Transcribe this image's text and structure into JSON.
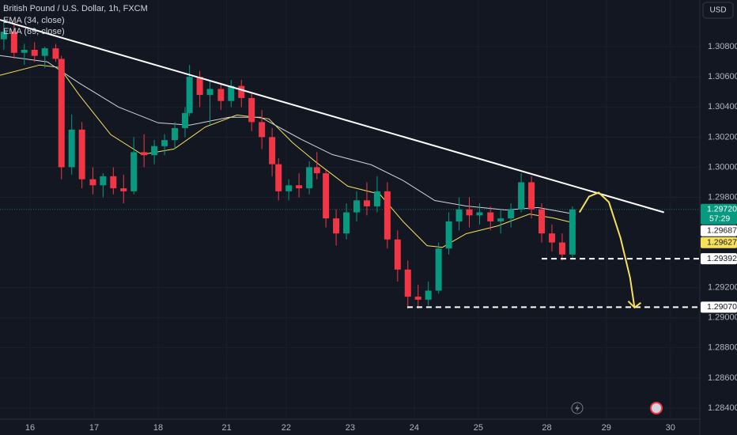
{
  "chart_data": {
    "type": "candlestick",
    "title": "British Pound / U.S. Dollar, 1h, FXCM",
    "currency": "USD",
    "up_color": "#089981",
    "down_color": "#f23645",
    "grid": true,
    "xlim": [
      -0.47,
      10.46
    ],
    "ylim": [
      1.28326,
      1.31111
    ],
    "xticks": [
      {
        "value": 0,
        "label": "16"
      },
      {
        "value": 1,
        "label": "17"
      },
      {
        "value": 2,
        "label": "18"
      },
      {
        "value": 3.07,
        "label": "21"
      },
      {
        "value": 4,
        "label": "22"
      },
      {
        "value": 5,
        "label": "23"
      },
      {
        "value": 6,
        "label": "24"
      },
      {
        "value": 7,
        "label": "25"
      },
      {
        "value": 8.07,
        "label": "28"
      },
      {
        "value": 9,
        "label": "29"
      },
      {
        "value": 10,
        "label": "30"
      }
    ],
    "yticks": [
      {
        "value": 1.308,
        "label": "1.30800"
      },
      {
        "value": 1.306,
        "label": "1.30600"
      },
      {
        "value": 1.304,
        "label": "1.30400"
      },
      {
        "value": 1.302,
        "label": "1.30200"
      },
      {
        "value": 1.3,
        "label": "1.30000"
      },
      {
        "value": 1.298,
        "label": "1.29800"
      },
      {
        "value": 1.292,
        "label": "1.29200"
      },
      {
        "value": 1.29,
        "label": "1.29000"
      },
      {
        "value": 1.288,
        "label": "1.28800"
      },
      {
        "value": 1.286,
        "label": "1.28600"
      },
      {
        "value": 1.284,
        "label": "1.28400"
      }
    ],
    "candles": {
      "x": [
        -0.41,
        -0.25,
        -0.09,
        0.07,
        0.23,
        0.4,
        0.49,
        0.65,
        0.81,
        0.98,
        1.14,
        1.3,
        1.46,
        1.62,
        1.78,
        1.94,
        2.1,
        2.26,
        2.42,
        2.49,
        2.65,
        2.81,
        2.98,
        3.14,
        3.3,
        3.46,
        3.62,
        3.78,
        3.88,
        4.04,
        4.2,
        4.36,
        4.48,
        4.62,
        4.78,
        4.94,
        5.1,
        5.26,
        5.42,
        5.58,
        5.74,
        5.9,
        6.06,
        6.22,
        6.38,
        6.54,
        6.7,
        6.86,
        7.02,
        7.19,
        7.35,
        7.51,
        7.67,
        7.83,
        7.99,
        8.15,
        8.31,
        8.47
      ],
      "open": [
        1.3085,
        1.309,
        1.3076,
        1.3078,
        1.3074,
        1.3079,
        1.3072,
        1.3,
        1.3025,
        1.2992,
        1.2988,
        1.2994,
        1.2986,
        1.2984,
        1.301,
        1.3008,
        1.3014,
        1.3018,
        1.3026,
        1.3036,
        1.306,
        1.3048,
        1.3052,
        1.3044,
        1.3054,
        1.3046,
        1.303,
        1.302,
        1.3002,
        1.2984,
        1.2988,
        1.2986,
        1.3,
        1.2996,
        1.2966,
        1.2956,
        1.297,
        1.2978,
        1.2974,
        1.2984,
        1.2952,
        1.2932,
        1.2914,
        1.2912,
        1.2918,
        1.2946,
        1.2964,
        1.2972,
        1.2968,
        1.297,
        1.2964,
        1.2966,
        1.2972,
        1.299,
        1.2972,
        1.2956,
        1.295,
        1.2942
      ],
      "high": [
        1.3098,
        1.3096,
        1.3082,
        1.3083,
        1.308,
        1.3082,
        1.3074,
        1.3035,
        1.303,
        1.3,
        1.2996,
        1.3,
        1.2995,
        1.302,
        1.3022,
        1.3018,
        1.3022,
        1.303,
        1.304,
        1.3068,
        1.3064,
        1.3058,
        1.3056,
        1.3058,
        1.3058,
        1.305,
        1.3038,
        1.3026,
        1.3006,
        1.2992,
        1.2996,
        1.3004,
        1.301,
        1.2998,
        1.2972,
        1.2976,
        1.2984,
        1.299,
        1.2994,
        1.299,
        1.2958,
        1.2938,
        1.2922,
        1.2924,
        1.295,
        1.297,
        1.298,
        1.298,
        1.2976,
        1.2974,
        1.2972,
        1.2976,
        1.2996,
        1.2994,
        1.2976,
        1.2962,
        1.2956,
        1.2974
      ],
      "low": [
        1.3078,
        1.3072,
        1.3068,
        1.307,
        1.3066,
        1.307,
        1.2992,
        1.2995,
        1.2986,
        1.2982,
        1.298,
        1.2982,
        1.2976,
        1.2982,
        1.3,
        1.3002,
        1.3008,
        1.3012,
        1.302,
        1.3034,
        1.304,
        1.3028,
        1.3038,
        1.304,
        1.304,
        1.3024,
        1.3012,
        1.2994,
        1.2978,
        1.2978,
        1.298,
        1.2982,
        1.2992,
        1.296,
        1.2948,
        1.2952,
        1.2964,
        1.2968,
        1.297,
        1.2946,
        1.2924,
        1.2906,
        1.2906,
        1.2908,
        1.2916,
        1.2942,
        1.2958,
        1.296,
        1.2962,
        1.2958,
        1.2956,
        1.296,
        1.297,
        1.2966,
        1.295,
        1.2944,
        1.2938,
        1.294
      ],
      "close": [
        1.309,
        1.3076,
        1.3078,
        1.3074,
        1.3079,
        1.3072,
        1.3,
        1.3025,
        1.2992,
        1.2988,
        1.2994,
        1.2986,
        1.2984,
        1.301,
        1.3008,
        1.3014,
        1.3018,
        1.3026,
        1.3036,
        1.306,
        1.3048,
        1.3052,
        1.3044,
        1.3054,
        1.3046,
        1.303,
        1.302,
        1.3002,
        1.2984,
        1.2988,
        1.2986,
        1.3,
        1.2996,
        1.2966,
        1.2956,
        1.297,
        1.2978,
        1.2974,
        1.2984,
        1.2952,
        1.2932,
        1.2914,
        1.2912,
        1.2918,
        1.2946,
        1.2964,
        1.2972,
        1.2968,
        1.297,
        1.2964,
        1.2966,
        1.2972,
        1.299,
        1.2972,
        1.2956,
        1.295,
        1.2942,
        1.2972
      ]
    },
    "series": [
      {
        "name": "EMA (34, close)",
        "color": "#f7e15b",
        "x": [
          -0.47,
          0.15,
          0.46,
          0.77,
          1.26,
          1.75,
          2.25,
          2.74,
          3.23,
          3.73,
          4.1,
          4.47,
          4.96,
          5.46,
          5.83,
          6.2,
          6.44,
          6.81,
          7.31,
          7.8,
          8.17,
          8.52
        ],
        "values": [
          1.30611,
          1.30679,
          1.30663,
          1.30479,
          1.30216,
          1.30084,
          1.30121,
          1.30268,
          1.30347,
          1.30321,
          1.30163,
          1.30032,
          1.29874,
          1.29821,
          1.29637,
          1.29479,
          1.29468,
          1.29558,
          1.29611,
          1.29689,
          1.29663,
          1.29627
        ]
      },
      {
        "name": "EMA (89, close)",
        "color": "#d1d4dc",
        "x": [
          -0.47,
          0.27,
          0.77,
          1.38,
          2.0,
          2.49,
          3.11,
          3.6,
          4.22,
          4.72,
          5.33,
          5.83,
          6.32,
          6.81,
          7.43,
          7.93,
          8.52
        ],
        "values": [
          1.30742,
          1.307,
          1.30558,
          1.304,
          1.30295,
          1.30279,
          1.30332,
          1.30332,
          1.30189,
          1.30084,
          1.30016,
          1.29911,
          1.29779,
          1.29742,
          1.29716,
          1.29732,
          1.29687
        ]
      }
    ],
    "trendline": {
      "x": [
        -0.47,
        9.9
      ],
      "values": [
        1.30979,
        1.297
      ]
    },
    "levels": [
      {
        "value": 1.29392,
        "x_start": 7.99
      },
      {
        "value": 1.2907,
        "x_start": 5.89
      }
    ],
    "forecast": {
      "color": "#f7e15b",
      "x": [
        8.58,
        8.73,
        8.88,
        9.04,
        9.22,
        9.37,
        9.44
      ],
      "values": [
        1.297,
        1.29805,
        1.29832,
        1.29768,
        1.29532,
        1.29268,
        1.29068
      ]
    },
    "last_price": 1.2972,
    "price_labels": [
      {
        "value": 1.2972,
        "label": "1.29720",
        "countdown": "57:29",
        "color": "#089981",
        "text_color": "#ffffff"
      },
      {
        "value": 1.29687,
        "label": "1.29687",
        "color": "#ffffff",
        "text_color": "#131722"
      },
      {
        "value": 1.29627,
        "label": "1.29627",
        "color": "#f7e15b",
        "text_color": "#131722"
      },
      {
        "value": 1.29392,
        "label": "1.29392",
        "color": "#ffffff",
        "text_color": "#131722"
      },
      {
        "value": 1.2907,
        "label": "1.29070",
        "color": "#ffffff",
        "text_color": "#131722"
      }
    ]
  }
}
